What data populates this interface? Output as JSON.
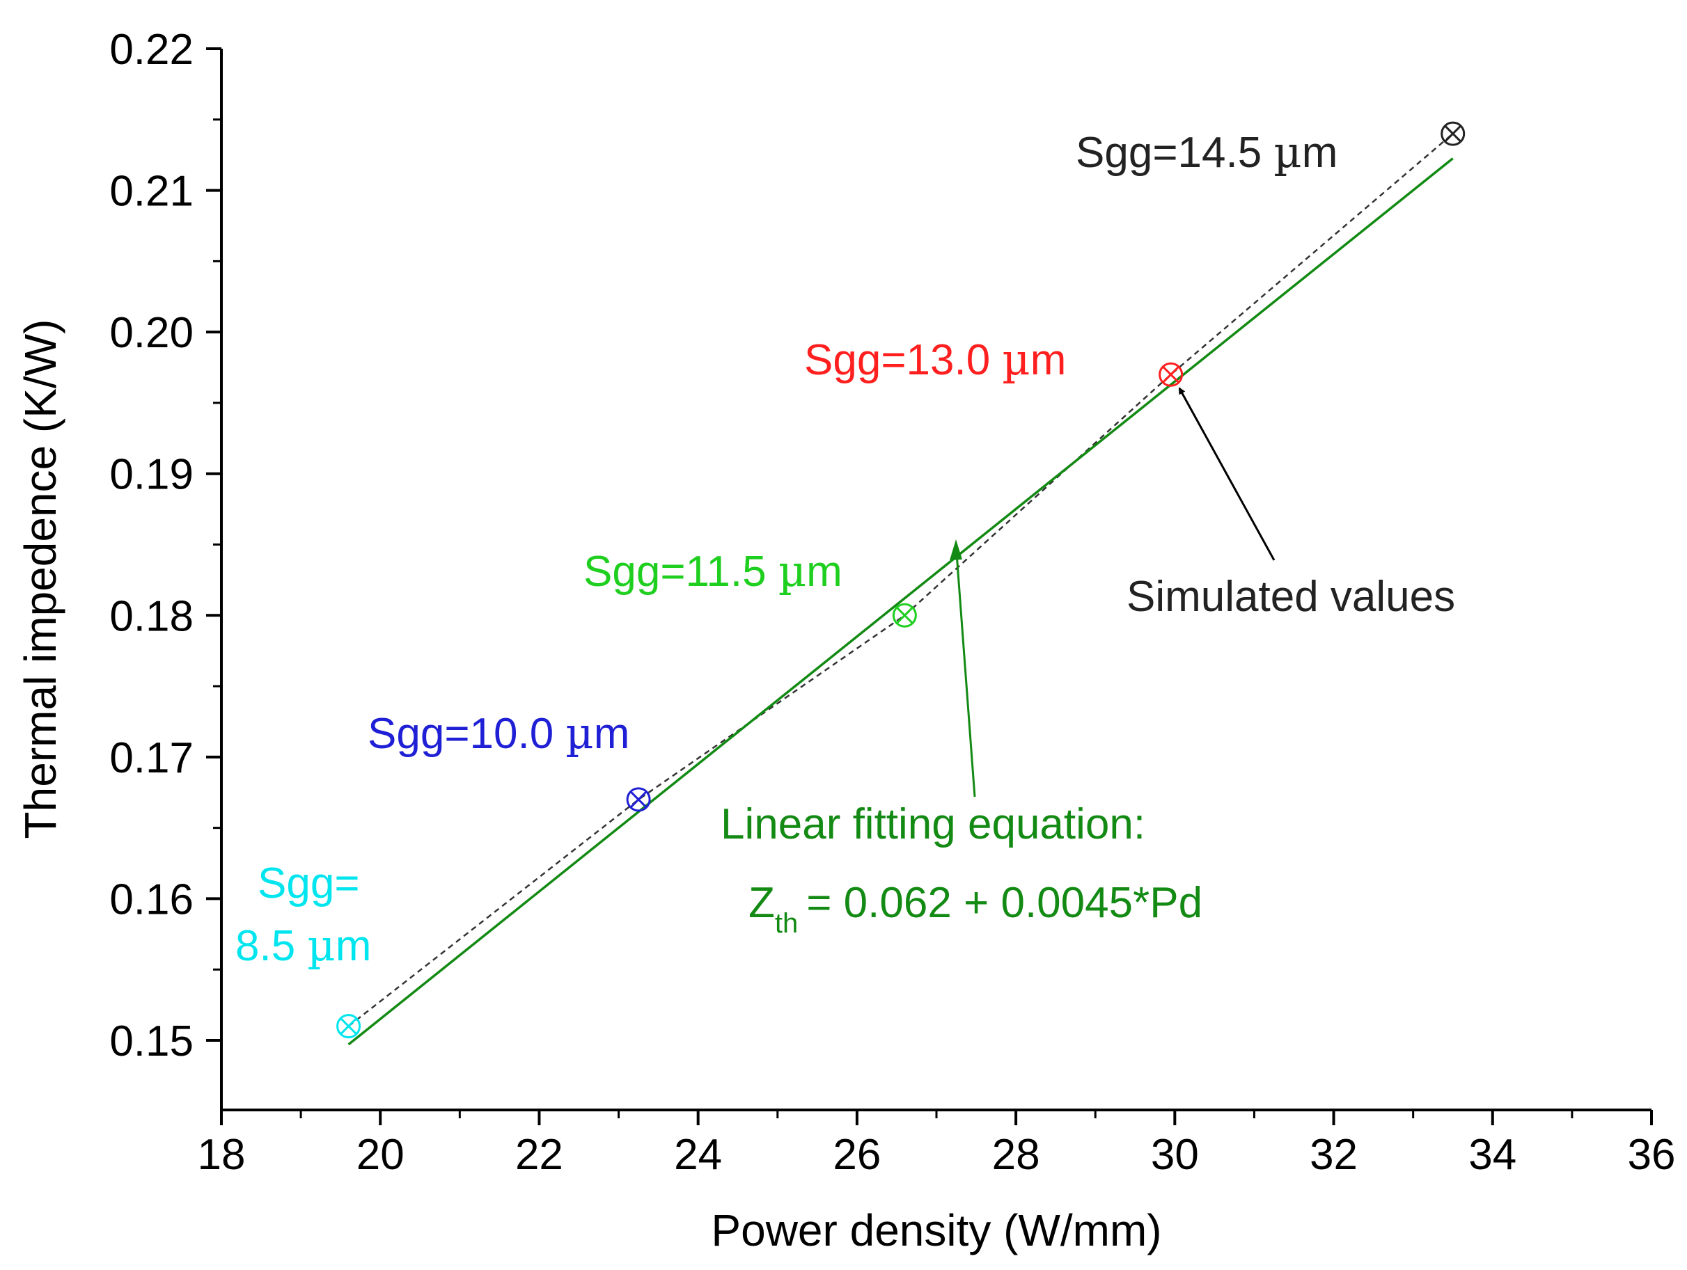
{
  "chart_data": {
    "type": "scatter",
    "title": "",
    "xlabel": "Power density (W/mm)",
    "ylabel": "Thermal impedence (K/W)",
    "xlim": [
      18,
      36
    ],
    "ylim": [
      0.145,
      0.22
    ],
    "xticks": [
      "18",
      "20",
      "22",
      "24",
      "26",
      "28",
      "30",
      "32",
      "34",
      "36"
    ],
    "xtick_values": [
      18,
      20,
      22,
      24,
      26,
      28,
      30,
      32,
      34,
      36
    ],
    "yticks": [
      "0.15",
      "0.16",
      "0.17",
      "0.18",
      "0.19",
      "0.20",
      "0.21",
      "0.22"
    ],
    "ytick_values": [
      0.15,
      0.16,
      0.17,
      0.18,
      0.19,
      0.2,
      0.21,
      0.22
    ],
    "grid": false,
    "series": [
      {
        "name": "Simulated values",
        "points": [
          {
            "x": 19.6,
            "y": 0.151,
            "label": "Sgg=8.5 µm",
            "color": "#00e5ee"
          },
          {
            "x": 23.25,
            "y": 0.167,
            "label": "Sgg=10.0 µm",
            "color": "#1f1fd6"
          },
          {
            "x": 26.6,
            "y": 0.18,
            "label": "Sgg=11.5 µm",
            "color": "#1fcf1f"
          },
          {
            "x": 29.95,
            "y": 0.197,
            "label": "Sgg=13.0 µm",
            "color": "#ff1f1f"
          },
          {
            "x": 33.5,
            "y": 0.214,
            "label": "Sgg=14.5 µm",
            "color": "#222222"
          }
        ]
      },
      {
        "name": "Linear fit",
        "intercept": 0.062,
        "slope": 0.0045,
        "x_range": [
          19.6,
          33.5
        ],
        "color": "#138a13"
      }
    ]
  },
  "annotations": {
    "sgg_85_line1": "Sgg=",
    "sgg_85_line2": "8.5 ",
    "sgg_100": "Sgg=10.0 ",
    "sgg_115": "Sgg=11.5 ",
    "sgg_130": "Sgg=13.0 ",
    "sgg_145": "Sgg=14.5 ",
    "mu": "µ",
    "m": "m",
    "simulated_values": "Simulated values",
    "fit_title": "Linear fitting equation:",
    "fit_z": "Z",
    "fit_sub": "th",
    "fit_rhs": "= 0.062 + 0.0045*Pd"
  },
  "colors": {
    "cyan": "#00e5ee",
    "blue": "#1f1fd6",
    "green": "#1fcf1f",
    "red": "#ff1f1f",
    "black": "#222222",
    "fit_green": "#138a13"
  }
}
